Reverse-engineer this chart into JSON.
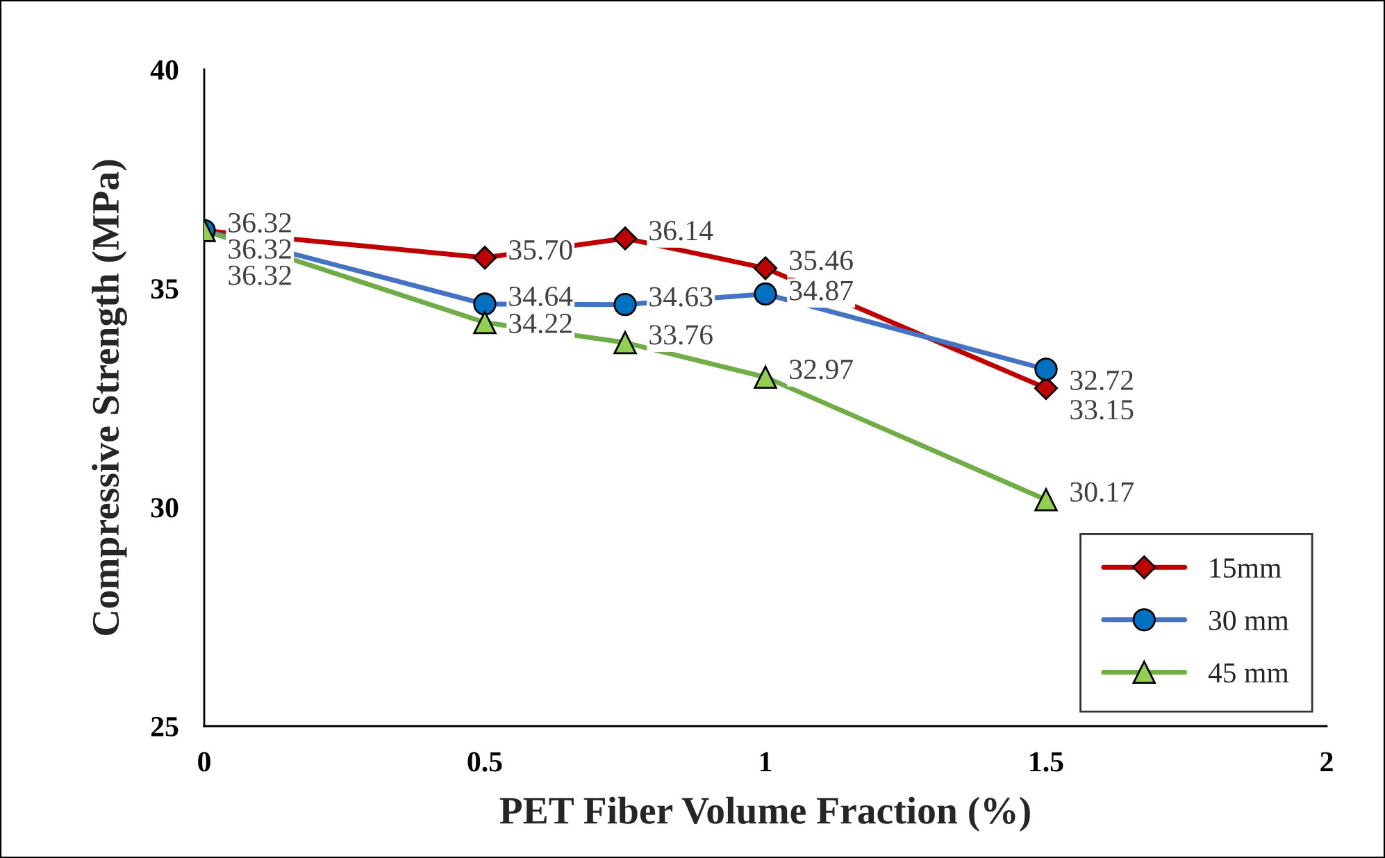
{
  "chart_data": {
    "type": "line",
    "xlabel": "PET Fiber Volume Fraction (%)",
    "ylabel": "Compressive Strength (MPa)",
    "x": [
      0,
      0.5,
      0.75,
      1,
      1.5
    ],
    "xlim": [
      0,
      2
    ],
    "xticks": [
      0,
      0.5,
      1,
      1.5,
      2
    ],
    "ylim": [
      25,
      40
    ],
    "yticks": [
      25,
      30,
      35,
      40
    ],
    "grid": false,
    "legend": "bottom right",
    "line_style": "solid",
    "series": [
      {
        "name": "15mm",
        "color": "#c00000",
        "marker": "diamond",
        "values": [
          36.32,
          35.7,
          36.14,
          35.46,
          32.72
        ],
        "value_labels": [
          "36.32",
          "35.70",
          "36.14",
          "35.46",
          "32.72"
        ]
      },
      {
        "name": "30 mm",
        "color": "#4472c4",
        "marker": "circle",
        "values": [
          36.32,
          34.64,
          34.63,
          34.87,
          33.15
        ],
        "value_labels": [
          "36.32",
          "34.64",
          "34.63",
          "34.87",
          "33.15"
        ]
      },
      {
        "name": "45 mm",
        "color": "#70ad47",
        "marker": "triangle",
        "values": [
          36.32,
          34.22,
          33.76,
          32.97,
          30.17
        ],
        "value_labels": [
          "36.32",
          "34.22",
          "33.76",
          "32.97",
          "30.17"
        ]
      }
    ]
  }
}
